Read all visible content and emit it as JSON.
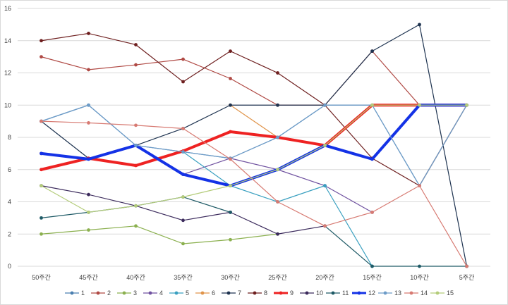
{
  "chart_data": {
    "type": "line",
    "title": "",
    "xlabel": "",
    "ylabel": "",
    "ylim": [
      0,
      16
    ],
    "yticks": [
      0,
      2,
      4,
      6,
      8,
      10,
      12,
      14,
      16
    ],
    "grid": true,
    "legend_position": "bottom",
    "categories": [
      "50주간",
      "45주간",
      "40주간",
      "35주간",
      "30주간",
      "25주간",
      "20주간",
      "15주간",
      "10주간",
      "5주간"
    ],
    "series": [
      {
        "name": "1",
        "color": "#4a7fb0",
        "width": 1.2,
        "values": [
          9,
          10,
          7.5,
          7.1,
          6.7,
          8,
          10,
          10,
          5,
          10
        ]
      },
      {
        "name": "2",
        "color": "#b04a45",
        "width": 1.2,
        "values": [
          13,
          12.2,
          12.5,
          12.85,
          11.65,
          10,
          10,
          13.35,
          10,
          10
        ]
      },
      {
        "name": "3",
        "color": "#8bb04f",
        "width": 1.2,
        "values": [
          2,
          2.25,
          2.5,
          1.4,
          1.65,
          2,
          null,
          null,
          null,
          null
        ]
      },
      {
        "name": "4",
        "color": "#7052a0",
        "width": 1.2,
        "values": [
          null,
          null,
          null,
          5.7,
          6.7,
          6,
          5,
          3.35,
          null,
          null
        ]
      },
      {
        "name": "5",
        "color": "#3aa0c0",
        "width": 1.2,
        "values": [
          null,
          null,
          null,
          7.1,
          5,
          4,
          5,
          0,
          null,
          null
        ]
      },
      {
        "name": "6",
        "color": "#e0944a",
        "width": 1.2,
        "values": [
          7,
          6.7,
          7.5,
          null,
          10,
          8,
          7.5,
          10,
          10,
          10
        ]
      },
      {
        "name": "7",
        "color": "#1e3350",
        "width": 1.2,
        "values": [
          9,
          6.7,
          7.5,
          8.55,
          10,
          10,
          10,
          13.35,
          15,
          0
        ]
      },
      {
        "name": "8",
        "color": "#6e1f1f",
        "width": 1.2,
        "values": [
          14,
          14.45,
          13.75,
          11.45,
          13.35,
          12,
          10,
          6.7,
          5,
          10
        ]
      },
      {
        "name": "9",
        "color": "#ee2222",
        "width": 4,
        "values": [
          6,
          6.7,
          6.25,
          7.15,
          8.35,
          8,
          7.5,
          10,
          10,
          10
        ]
      },
      {
        "name": "10",
        "color": "#3b2a5c",
        "width": 1.2,
        "values": [
          5,
          4.45,
          3.75,
          2.85,
          3.35,
          2,
          2.5,
          null,
          null,
          null
        ]
      },
      {
        "name": "11",
        "color": "#1e5a66",
        "width": 1.2,
        "values": [
          3,
          3.35,
          3.75,
          4.3,
          3.35,
          null,
          2.5,
          0,
          0,
          0
        ]
      },
      {
        "name": "12",
        "color": "#1432e6",
        "width": 4,
        "values": [
          7,
          6.65,
          7.5,
          5.7,
          5,
          6,
          7.5,
          6.65,
          10,
          10
        ]
      },
      {
        "name": "13",
        "color": "#6d9cc8",
        "width": 1.2,
        "values": [
          9,
          10,
          7.5,
          7.1,
          6.7,
          8,
          10,
          10,
          5,
          10
        ]
      },
      {
        "name": "14",
        "color": "#d77a72",
        "width": 1.2,
        "values": [
          9,
          8.9,
          8.75,
          8.55,
          6.65,
          4,
          2.5,
          3.35,
          5,
          0
        ]
      },
      {
        "name": "15",
        "color": "#b4cc7a",
        "width": 1.2,
        "values": [
          5,
          3.35,
          3.75,
          4.3,
          5,
          6,
          7.5,
          10,
          10,
          10
        ]
      }
    ]
  }
}
